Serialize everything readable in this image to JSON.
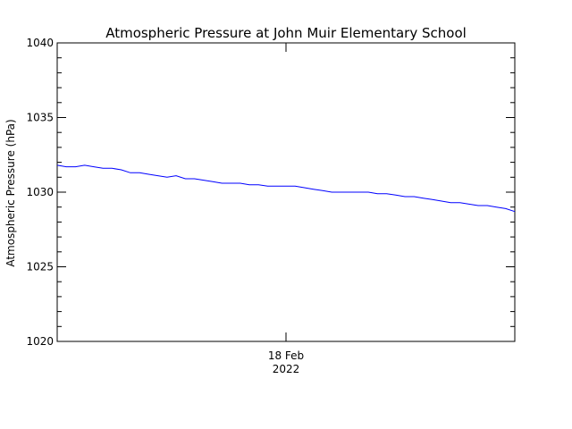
{
  "chart_data": {
    "type": "line",
    "title": "Atmospheric Pressure at John Muir Elementary School",
    "ylabel": "Atmospheric Pressure (hPa)",
    "xlabel": "",
    "ylim": [
      1020,
      1040
    ],
    "y_ticks": [
      1020,
      1025,
      1030,
      1035,
      1040
    ],
    "y_tick_labels": [
      "1020",
      "1025",
      "1030",
      "1035",
      "1040"
    ],
    "x_tick_labels": [
      {
        "line1": "18 Feb",
        "line2": "2022"
      }
    ],
    "x_tick_position": 0.5,
    "grid": false,
    "line_color": "#0000ff",
    "series": [
      {
        "x": [
          0,
          0.02,
          0.04,
          0.06,
          0.08,
          0.1,
          0.12,
          0.14,
          0.16,
          0.18,
          0.2,
          0.22,
          0.24,
          0.26,
          0.28,
          0.3,
          0.32,
          0.34,
          0.36,
          0.38,
          0.4,
          0.42,
          0.44,
          0.46,
          0.48,
          0.5,
          0.52,
          0.54,
          0.56,
          0.58,
          0.6,
          0.62,
          0.64,
          0.66,
          0.68,
          0.7,
          0.72,
          0.74,
          0.76,
          0.78,
          0.8,
          0.82,
          0.84,
          0.86,
          0.88,
          0.9,
          0.92,
          0.94,
          0.96,
          0.98,
          1.0
        ],
        "values": [
          1031.8,
          1031.7,
          1031.7,
          1031.8,
          1031.7,
          1031.6,
          1031.6,
          1031.5,
          1031.3,
          1031.3,
          1031.2,
          1031.1,
          1031.0,
          1031.1,
          1030.9,
          1030.9,
          1030.8,
          1030.7,
          1030.6,
          1030.6,
          1030.6,
          1030.5,
          1030.5,
          1030.4,
          1030.4,
          1030.4,
          1030.4,
          1030.3,
          1030.2,
          1030.1,
          1030.0,
          1030.0,
          1030.0,
          1030.0,
          1030.0,
          1029.9,
          1029.9,
          1029.8,
          1029.7,
          1029.7,
          1029.6,
          1029.5,
          1029.4,
          1029.3,
          1029.3,
          1029.2,
          1029.1,
          1029.1,
          1029.0,
          1028.9,
          1028.7
        ]
      }
    ]
  }
}
